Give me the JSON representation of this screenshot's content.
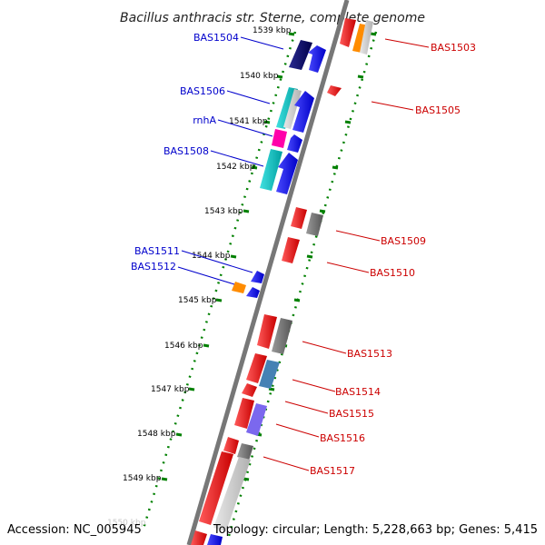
{
  "title": "Bacillus anthracis str. Sterne, complete genome",
  "footer": {
    "accession": "Accession: NC_005945",
    "info": "Topology: circular; Length: 5,228,663 bp; Genes: 5,415"
  },
  "ticks": [
    {
      "label": "1539 kbp"
    },
    {
      "label": "1540 kbp"
    },
    {
      "label": "1541 kbp"
    },
    {
      "label": "1542 kbp"
    },
    {
      "label": "1543 kbp"
    },
    {
      "label": "1544 kbp"
    },
    {
      "label": "1545 kbp"
    },
    {
      "label": "1546 kbp"
    },
    {
      "label": "1547 kbp"
    },
    {
      "label": "1548 kbp"
    },
    {
      "label": "1549 kbp"
    },
    {
      "label": "1550 kbp"
    }
  ],
  "labels_left": [
    {
      "text": "BAS1504",
      "color": "#0000cc"
    },
    {
      "text": "BAS1506",
      "color": "#0000cc"
    },
    {
      "text": "rnhA",
      "color": "#0000cc"
    },
    {
      "text": "BAS1508",
      "color": "#0000cc"
    },
    {
      "text": "BAS1511",
      "color": "#0000cc"
    },
    {
      "text": "BAS1512",
      "color": "#0000cc"
    }
  ],
  "labels_right": [
    {
      "text": "BAS1503",
      "color": "#cc0000"
    },
    {
      "text": "BAS1505",
      "color": "#cc0000"
    },
    {
      "text": "BAS1509",
      "color": "#cc0000"
    },
    {
      "text": "BAS1510",
      "color": "#cc0000"
    },
    {
      "text": "BAS1513",
      "color": "#cc0000"
    },
    {
      "text": "BAS1514",
      "color": "#cc0000"
    },
    {
      "text": "BAS1515",
      "color": "#cc0000"
    },
    {
      "text": "BAS1516",
      "color": "#cc0000"
    },
    {
      "text": "BAS1517",
      "color": "#cc0000"
    }
  ],
  "colors": {
    "forward": "#ff0000",
    "reverse": "#0000ff",
    "backbone": "#7a7a7a",
    "ticks": "#008000"
  }
}
